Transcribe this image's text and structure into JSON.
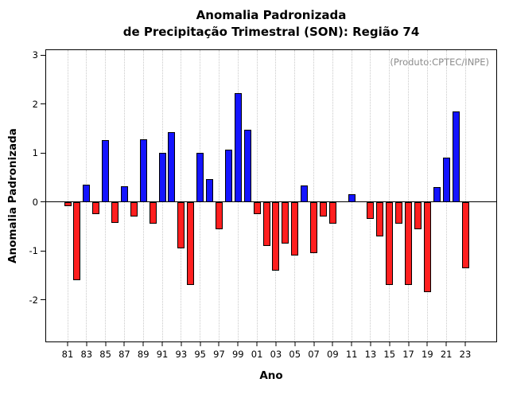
{
  "title": {
    "line1": "Anomalia Padronizada",
    "line2": "de Precipitação Trimestral (SON): Região 74"
  },
  "annotation": "(Produto:CPTEC/INPE)",
  "chart_data": {
    "type": "bar",
    "title": "Anomalia Padronizada de Precipitação Trimestral (SON): Região 74",
    "xlabel": "Ano",
    "ylabel": "Anomalia Padronizada",
    "ylim": [
      -2.85,
      3.1
    ],
    "yticks": [
      -2,
      -1,
      0,
      1,
      2,
      3
    ],
    "xtick_labels": [
      "81",
      "83",
      "85",
      "87",
      "89",
      "91",
      "93",
      "95",
      "97",
      "99",
      "01",
      "03",
      "05",
      "07",
      "09",
      "11",
      "13",
      "15",
      "17",
      "19",
      "21",
      "23"
    ],
    "years": [
      1981,
      1982,
      1983,
      1984,
      1985,
      1986,
      1987,
      1988,
      1989,
      1990,
      1991,
      1992,
      1993,
      1994,
      1995,
      1996,
      1997,
      1998,
      1999,
      2000,
      2001,
      2002,
      2003,
      2004,
      2005,
      2006,
      2007,
      2008,
      2009,
      2010,
      2011,
      2012,
      2013,
      2014,
      2015,
      2016,
      2017,
      2018,
      2019,
      2020,
      2021,
      2022,
      2023
    ],
    "values": [
      -0.08,
      -1.6,
      0.35,
      -0.25,
      1.27,
      -0.42,
      0.32,
      -0.3,
      1.28,
      -0.45,
      1.0,
      1.42,
      -0.95,
      -1.7,
      1.0,
      0.46,
      -0.55,
      1.07,
      2.23,
      1.47,
      -0.25,
      -0.9,
      -1.4,
      -0.85,
      -1.1,
      0.33,
      -1.05,
      -0.3,
      -0.45,
      0,
      0.15,
      0,
      -0.35,
      -0.7,
      -1.7,
      -0.45,
      -1.7,
      -0.55,
      -1.85,
      0.3,
      0.9,
      1.85,
      -1.35
    ],
    "positive_color": "#1414ff",
    "negative_color": "#ff1f1f",
    "bar_border_color": "#000000",
    "grid": "vertical-dotted",
    "legend": "none"
  }
}
